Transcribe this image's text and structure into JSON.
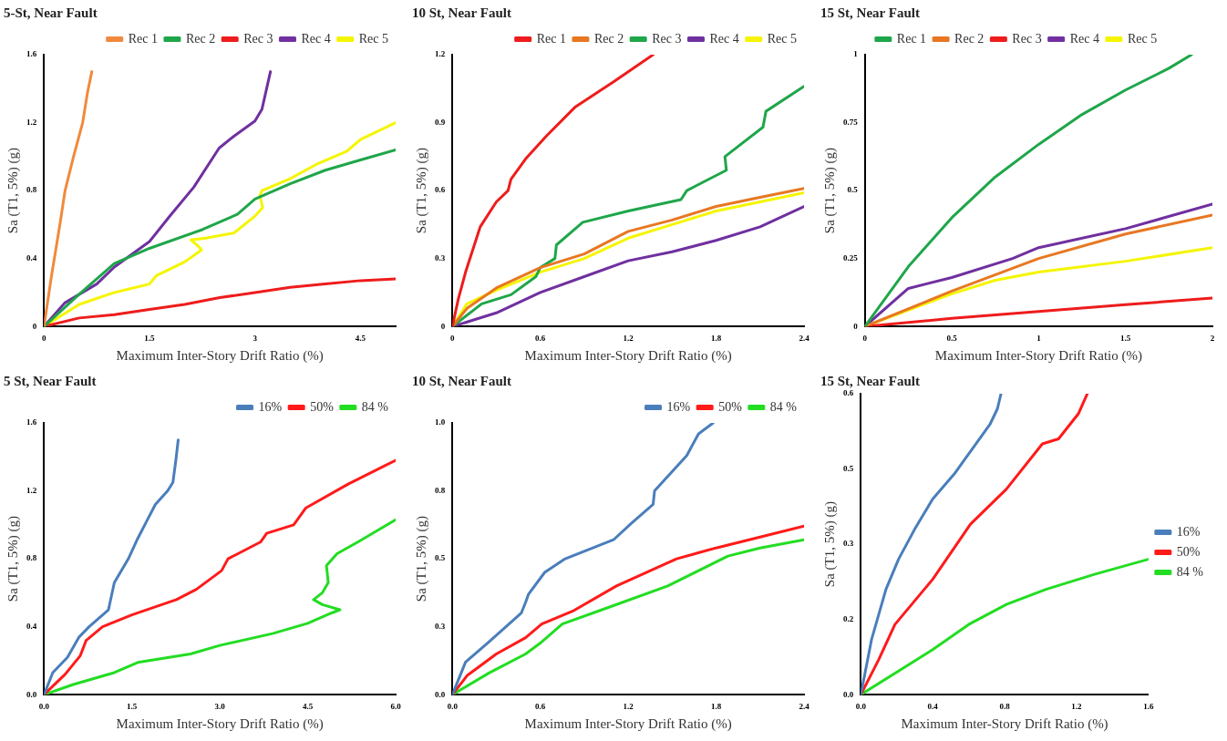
{
  "chart_data": [
    {
      "type": "line",
      "title": "5-St, Near Fault",
      "xlabel": "Maximum Inter-Story Drift Ratio (%)",
      "ylabel": "Sa (T1, 5%) (g)",
      "xlim": [
        0,
        5
      ],
      "xticks": [
        0,
        1.5,
        3,
        4.5
      ],
      "ylim": [
        0,
        1.6
      ],
      "yticks": [
        0,
        0.4,
        0.8,
        1.2,
        1.6
      ],
      "grid": false,
      "legend": "top right",
      "marker": "none",
      "line_style": "solid",
      "series": [
        {
          "name": "Rec 1",
          "color": "#f08a3c",
          "x": [
            0,
            0.1,
            0.23,
            0.3,
            0.42,
            0.55,
            0.62,
            0.68
          ],
          "values": [
            0,
            0.28,
            0.61,
            0.8,
            1.0,
            1.2,
            1.38,
            1.5
          ]
        },
        {
          "name": "Rec 2",
          "color": "#1fa64a",
          "x": [
            0,
            0.5,
            1,
            1.5,
            2.25,
            2.75,
            3,
            3.5,
            4,
            4.5,
            5
          ],
          "values": [
            0,
            0.19,
            0.37,
            0.46,
            0.57,
            0.66,
            0.75,
            0.84,
            0.92,
            0.98,
            1.04
          ]
        },
        {
          "name": "Rec 3",
          "color": "#ee1c1c",
          "x": [
            0,
            0.5,
            1,
            1.5,
            2,
            2.5,
            3,
            3.5,
            4,
            4.5,
            5
          ],
          "values": [
            0,
            0.05,
            0.07,
            0.1,
            0.13,
            0.17,
            0.2,
            0.23,
            0.25,
            0.27,
            0.28
          ]
        },
        {
          "name": "Rec 4",
          "color": "#7030a0",
          "x": [
            0,
            0.3,
            0.75,
            1,
            1.5,
            1.79,
            2.13,
            2.49,
            2.7,
            3,
            3.1,
            3.22
          ],
          "values": [
            0,
            0.14,
            0.25,
            0.35,
            0.5,
            0.65,
            0.82,
            1.05,
            1.12,
            1.21,
            1.28,
            1.5
          ]
        },
        {
          "name": "Rec 5",
          "color": "#f5f500",
          "x": [
            0,
            0.5,
            1,
            1.5,
            1.6,
            2,
            2.24,
            2.2,
            2.09,
            2.3,
            2.7,
            3.0,
            3.11,
            3.07,
            3.1,
            3.5,
            3.9,
            4.3,
            4.5,
            5
          ],
          "values": [
            0,
            0.13,
            0.2,
            0.25,
            0.3,
            0.38,
            0.45,
            0.47,
            0.51,
            0.52,
            0.55,
            0.65,
            0.7,
            0.77,
            0.8,
            0.87,
            0.96,
            1.03,
            1.1,
            1.2
          ]
        }
      ]
    },
    {
      "type": "line",
      "title": "10 St, Near Fault",
      "xlabel": "Maximum Inter-Story Drift Ratio (%)",
      "ylabel": "Sa (T1, 5%) (g)",
      "xlim": [
        0,
        2.4
      ],
      "xticks": [
        0,
        0.6,
        1.2,
        1.8,
        2.4
      ],
      "ylim": [
        0,
        1.2
      ],
      "yticks": [
        0,
        0.3,
        0.6,
        0.9,
        1.2
      ],
      "grid": false,
      "legend": "top right",
      "marker": "none",
      "line_style": "solid",
      "series": [
        {
          "name": "Rec 1",
          "color": "#ee1c1c",
          "x": [
            0,
            0.04,
            0.09,
            0.19,
            0.3,
            0.38,
            0.4,
            0.5,
            0.64,
            0.84,
            1.1,
            1.37
          ],
          "values": [
            0,
            0.12,
            0.24,
            0.44,
            0.55,
            0.6,
            0.65,
            0.74,
            0.84,
            0.97,
            1.08,
            1.2
          ]
        },
        {
          "name": "Rec 2",
          "color": "#e87722",
          "x": [
            0,
            0.1,
            0.3,
            0.6,
            0.9,
            1.2,
            1.5,
            1.8,
            2.1,
            2.4
          ],
          "values": [
            0,
            0.08,
            0.17,
            0.26,
            0.32,
            0.42,
            0.47,
            0.53,
            0.57,
            0.61
          ]
        },
        {
          "name": "Rec 3",
          "color": "#1fa64a",
          "x": [
            0,
            0.2,
            0.4,
            0.57,
            0.6,
            0.7,
            0.71,
            0.89,
            1.2,
            1.56,
            1.6,
            1.87,
            1.86,
            2.12,
            2.14,
            2.4
          ],
          "values": [
            0,
            0.1,
            0.14,
            0.22,
            0.26,
            0.3,
            0.36,
            0.46,
            0.51,
            0.56,
            0.6,
            0.69,
            0.75,
            0.88,
            0.95,
            1.06
          ]
        },
        {
          "name": "Rec 4",
          "color": "#7030a0",
          "x": [
            0,
            0.3,
            0.6,
            0.9,
            1.2,
            1.5,
            1.8,
            2.1,
            2.4
          ],
          "values": [
            0,
            0.06,
            0.15,
            0.22,
            0.29,
            0.33,
            0.38,
            0.44,
            0.53
          ]
        },
        {
          "name": "Rec 5",
          "color": "#f5f500",
          "x": [
            0,
            0.1,
            0.3,
            0.6,
            0.9,
            1.2,
            1.5,
            1.8,
            2.1,
            2.4
          ],
          "values": [
            0,
            0.1,
            0.16,
            0.24,
            0.3,
            0.39,
            0.45,
            0.51,
            0.55,
            0.59
          ]
        }
      ]
    },
    {
      "type": "line",
      "title": "15 St, Near Fault",
      "xlabel": "Maximum Inter-Story Drift Ratio (%)",
      "ylabel": "Sa (T1, 5%) (g)",
      "xlim": [
        0,
        2
      ],
      "xticks": [
        0,
        0.5,
        1,
        1.5,
        2
      ],
      "ylim": [
        0,
        1
      ],
      "yticks": [
        0,
        0.25,
        0.5,
        0.75,
        1
      ],
      "grid": false,
      "legend": "top",
      "marker": "none",
      "line_style": "solid",
      "series": [
        {
          "name": "Rec 1",
          "color": "#1fa64a",
          "x": [
            0,
            0.25,
            0.5,
            0.75,
            1,
            1.25,
            1.5,
            1.75,
            1.88
          ],
          "values": [
            0,
            0.22,
            0.4,
            0.55,
            0.67,
            0.78,
            0.87,
            0.95,
            1.0
          ]
        },
        {
          "name": "Rec 2",
          "color": "#e87722",
          "x": [
            0,
            0.5,
            1,
            1.5,
            2
          ],
          "values": [
            0,
            0.13,
            0.25,
            0.34,
            0.41
          ]
        },
        {
          "name": "Rec 3",
          "color": "#ee1c1c",
          "x": [
            0,
            0.5,
            1,
            1.5,
            2
          ],
          "values": [
            0,
            0.03,
            0.055,
            0.08,
            0.105
          ]
        },
        {
          "name": "Rec 4",
          "color": "#7030a0",
          "x": [
            0,
            0.25,
            0.5,
            0.85,
            1,
            1.5,
            2
          ],
          "values": [
            0,
            0.14,
            0.18,
            0.25,
            0.29,
            0.36,
            0.45
          ]
        },
        {
          "name": "Rec 5",
          "color": "#f5f500",
          "x": [
            0,
            0.5,
            0.75,
            1,
            1.5,
            2
          ],
          "values": [
            0,
            0.12,
            0.17,
            0.2,
            0.24,
            0.29
          ]
        }
      ]
    },
    {
      "type": "line",
      "title": "5 St, Near Fault",
      "xlabel": "Maximum Inter-Story Drift Ratio (%)",
      "ylabel": "Sa (T1, 5%) (g)",
      "xlim": [
        0,
        6
      ],
      "xticks": [
        {
          "value": 0,
          "label": "0.0"
        },
        {
          "value": 1.5,
          "label": "1.5"
        },
        {
          "value": 3,
          "label": "3.0"
        },
        {
          "value": 4.5,
          "label": "4.5"
        },
        {
          "value": 6,
          "label": "6.0"
        }
      ],
      "ylim": [
        0,
        1.6
      ],
      "yticks": [
        {
          "value": 0,
          "label": "0.0"
        },
        0.4,
        0.8,
        1.2,
        1.6
      ],
      "grid": false,
      "legend": "top right",
      "marker": "none",
      "line_style": "solid",
      "series": [
        {
          "name": "16%",
          "color": "#4a7ebb",
          "x": [
            0,
            0.15,
            0.4,
            0.6,
            0.77,
            1.1,
            1.2,
            1.44,
            1.6,
            1.75,
            1.9,
            2.11,
            2.2,
            2.25,
            2.29
          ],
          "values": [
            0,
            0.13,
            0.22,
            0.34,
            0.4,
            0.5,
            0.66,
            0.8,
            0.92,
            1.02,
            1.12,
            1.2,
            1.25,
            1.38,
            1.5
          ]
        },
        {
          "name": "50%",
          "color": "#ff1a1a",
          "x": [
            0,
            0.36,
            0.62,
            0.72,
            1.0,
            1.5,
            2.26,
            2.6,
            3.03,
            3.14,
            3.7,
            3.8,
            4.26,
            4.47,
            5.19,
            6.0
          ],
          "values": [
            0,
            0.12,
            0.23,
            0.32,
            0.4,
            0.47,
            0.56,
            0.62,
            0.73,
            0.8,
            0.9,
            0.95,
            1.0,
            1.1,
            1.24,
            1.38
          ]
        },
        {
          "name": "84 %",
          "color": "#22dd22",
          "x": [
            0,
            0.5,
            1.2,
            1.6,
            2.5,
            3.0,
            3.9,
            4.5,
            4.9,
            5.05,
            4.75,
            4.6,
            4.75,
            4.85,
            4.82,
            5.0,
            5.36,
            6.0
          ],
          "values": [
            0,
            0.06,
            0.13,
            0.19,
            0.24,
            0.29,
            0.36,
            0.42,
            0.48,
            0.5,
            0.53,
            0.56,
            0.6,
            0.66,
            0.76,
            0.83,
            0.9,
            1.03
          ]
        }
      ]
    },
    {
      "type": "line",
      "title": "10 St, Near Fault",
      "xlabel": "Maximum Inter-Story Drift Ratio (%)",
      "ylabel": "Sa (T1, 5%) (g)",
      "xlim": [
        0,
        2.4
      ],
      "xticks": [
        {
          "value": 0,
          "label": "0.0"
        },
        0.6,
        1.2,
        1.8,
        2.4
      ],
      "ylim": [
        0,
        1
      ],
      "yticks": [
        {
          "value": 0,
          "label": "0.0"
        },
        {
          "value": 0.25,
          "label": "0.3"
        },
        0.5,
        {
          "value": 0.75,
          "label": "0.8"
        },
        {
          "value": 1,
          "label": "1.0"
        }
      ],
      "grid": false,
      "legend": "top right",
      "marker": "none",
      "line_style": "solid",
      "series": [
        {
          "name": "16%",
          "color": "#4a7ebb",
          "x": [
            0,
            0.09,
            0.24,
            0.47,
            0.5,
            0.52,
            0.63,
            0.77,
            1.1,
            1.22,
            1.37,
            1.38,
            1.6,
            1.68,
            1.78
          ],
          "values": [
            0,
            0.12,
            0.19,
            0.3,
            0.34,
            0.37,
            0.45,
            0.5,
            0.57,
            0.63,
            0.7,
            0.75,
            0.88,
            0.96,
            1.0
          ]
        },
        {
          "name": "50%",
          "color": "#ff1a1a",
          "x": [
            0,
            0.1,
            0.3,
            0.5,
            0.61,
            0.83,
            1.12,
            1.53,
            1.8,
            2.1,
            2.4
          ],
          "values": [
            0,
            0.07,
            0.15,
            0.21,
            0.26,
            0.31,
            0.4,
            0.5,
            0.54,
            0.58,
            0.62
          ]
        },
        {
          "name": "84 %",
          "color": "#22dd22",
          "x": [
            0,
            0.25,
            0.5,
            0.6,
            0.75,
            1.06,
            1.47,
            1.88,
            2.1,
            2.4
          ],
          "values": [
            0,
            0.08,
            0.15,
            0.19,
            0.26,
            0.32,
            0.4,
            0.51,
            0.54,
            0.57
          ]
        }
      ]
    },
    {
      "type": "line",
      "title": "15 St, Near Fault",
      "xlabel": "Maximum Inter-Story Drift Ratio (%)",
      "ylabel": "Sa (T1, 5%) (g)",
      "xlim": [
        0,
        1.6
      ],
      "xticks": [
        {
          "value": 0,
          "label": "0.0"
        },
        0.4,
        0.8,
        1.2,
        1.6
      ],
      "ylim": [
        0,
        0.6
      ],
      "yticks": [
        {
          "value": 0,
          "label": "0.0"
        },
        {
          "value": 0.15,
          "label": "0.2"
        },
        0.3,
        {
          "value": 0.45,
          "label": "0.5"
        },
        0.6
      ],
      "grid": false,
      "legend": "right",
      "marker": "none",
      "line_style": "solid",
      "series": [
        {
          "name": "16%",
          "color": "#4a7ebb",
          "x": [
            0,
            0.06,
            0.14,
            0.21,
            0.3,
            0.4,
            0.52,
            0.64,
            0.72,
            0.76,
            0.78
          ],
          "values": [
            0,
            0.11,
            0.21,
            0.27,
            0.33,
            0.39,
            0.44,
            0.5,
            0.54,
            0.57,
            0.6
          ]
        },
        {
          "name": "50%",
          "color": "#ff1a1a",
          "x": [
            0,
            0.1,
            0.19,
            0.4,
            0.61,
            0.81,
            1.01,
            1.1,
            1.21,
            1.26
          ],
          "values": [
            0,
            0.07,
            0.14,
            0.23,
            0.34,
            0.41,
            0.5,
            0.51,
            0.56,
            0.6
          ]
        },
        {
          "name": "84 %",
          "color": "#22dd22",
          "x": [
            0,
            0.4,
            0.6,
            0.81,
            1.03,
            1.3,
            1.6
          ],
          "values": [
            0,
            0.09,
            0.14,
            0.18,
            0.21,
            0.24,
            0.27
          ]
        }
      ]
    }
  ]
}
